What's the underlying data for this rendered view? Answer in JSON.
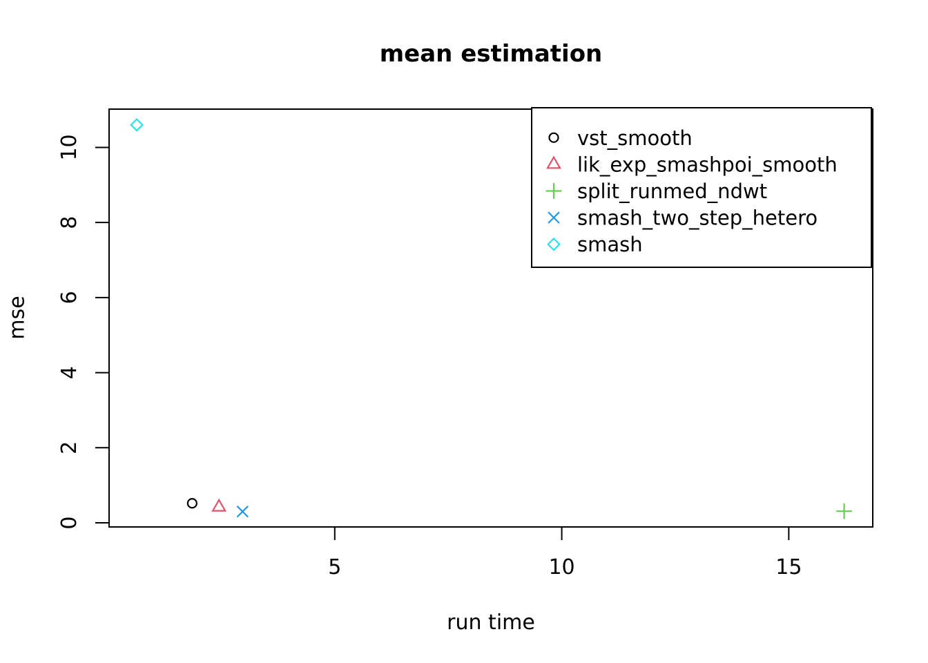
{
  "chart_data": {
    "type": "scatter",
    "title": "mean estimation",
    "xlabel": "run time",
    "ylabel": "mse",
    "xlim": [
      0.03,
      16.85
    ],
    "ylim": [
      -0.11,
      11.02
    ],
    "x_ticks": [
      5,
      10,
      15
    ],
    "y_ticks": [
      0,
      2,
      4,
      6,
      8,
      10
    ],
    "grid": false,
    "legend_position": "topright",
    "axis_color": "#000000",
    "background_color": "#ffffff",
    "series": [
      {
        "name": "vst_smooth",
        "marker": "circle",
        "color": "#000000",
        "points": [
          {
            "x": 1.86,
            "y": 0.52
          }
        ]
      },
      {
        "name": "lik_exp_smashpoi_smooth",
        "marker": "triangle",
        "color": "#DF536B",
        "points": [
          {
            "x": 2.45,
            "y": 0.42
          }
        ]
      },
      {
        "name": "split_runmed_ndwt",
        "marker": "plus",
        "color": "#61D04F",
        "points": [
          {
            "x": 16.22,
            "y": 0.31
          }
        ]
      },
      {
        "name": "smash_two_step_hetero",
        "marker": "x",
        "color": "#2297E6",
        "points": [
          {
            "x": 2.97,
            "y": 0.3
          }
        ]
      },
      {
        "name": "smash",
        "marker": "diamond",
        "color": "#28E2E5",
        "points": [
          {
            "x": 0.64,
            "y": 10.6
          }
        ]
      }
    ]
  }
}
